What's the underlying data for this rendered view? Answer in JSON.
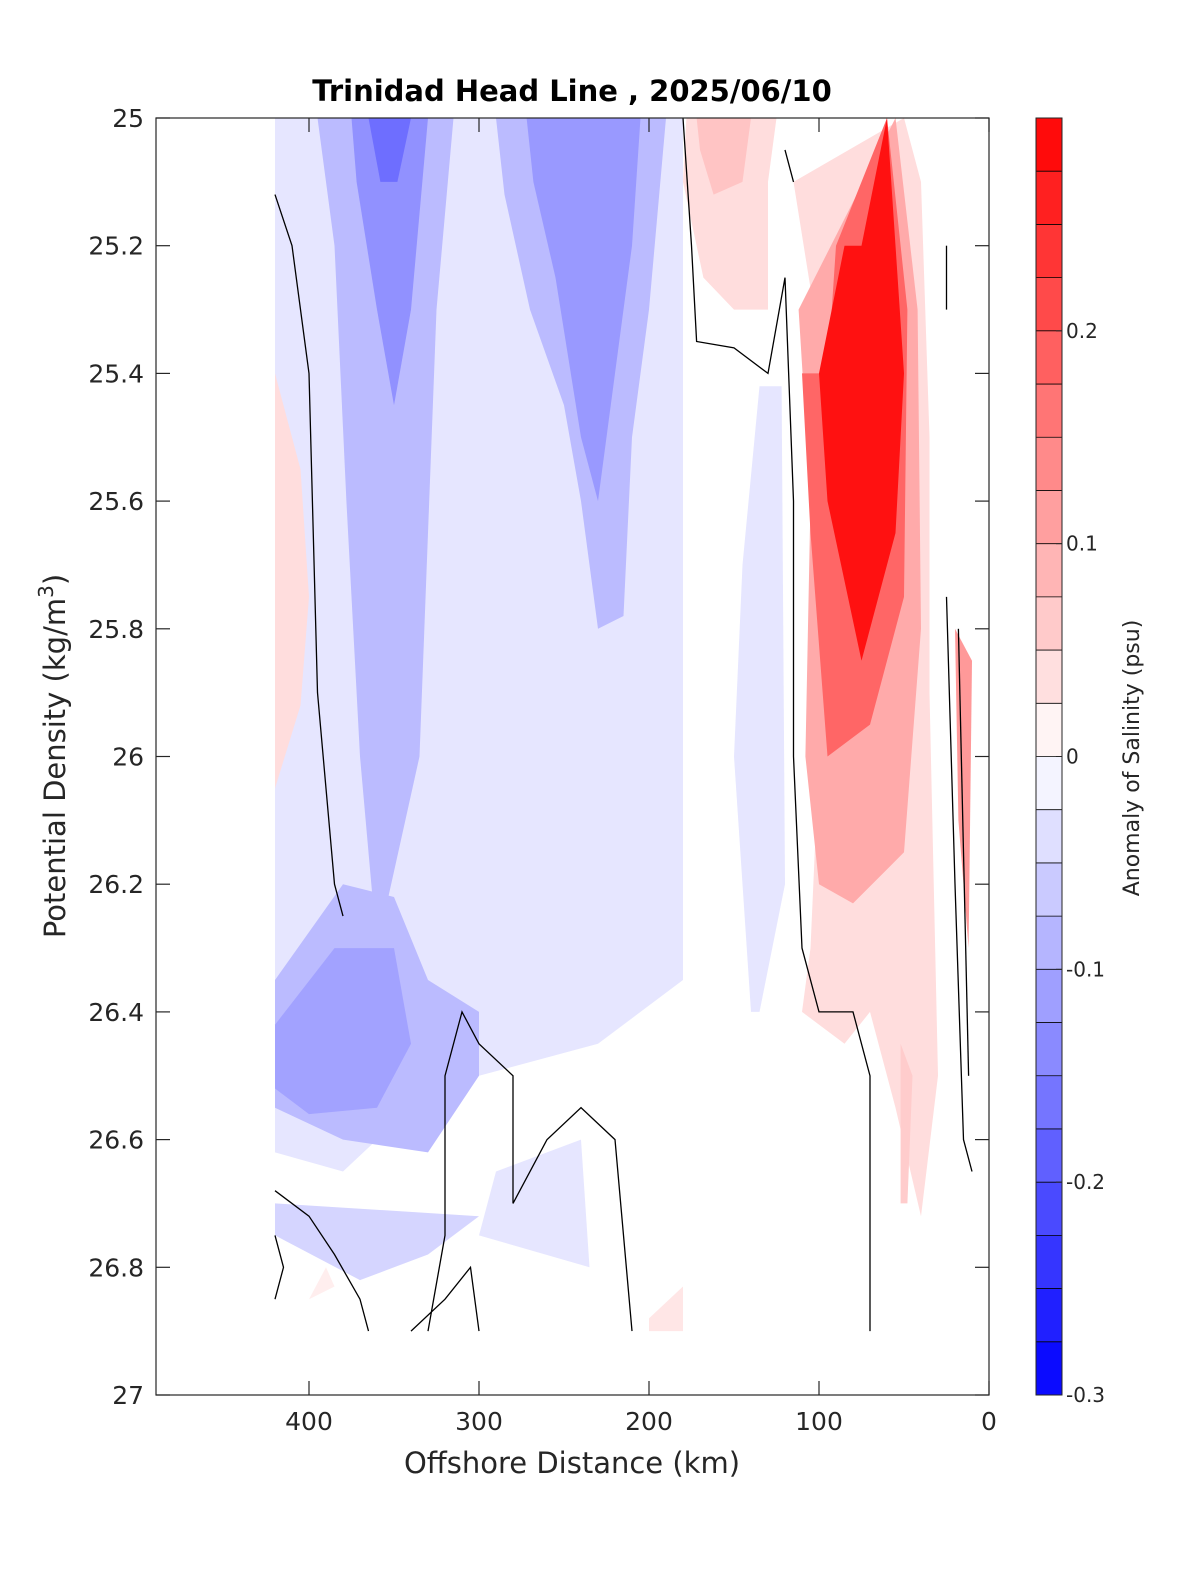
{
  "chart_data": {
    "type": "heatmap",
    "title": "Trinidad Head Line , 2025/06/10",
    "xlabel": "Offshore Distance (km)",
    "ylabel": "Potential Density (kg/m",
    "ylabel_sup": "3",
    "ylabel_close": ")",
    "xlim": [
      490,
      0
    ],
    "ylim": [
      25,
      27
    ],
    "x_reversed": true,
    "y_reversed": true,
    "x_ticks": [
      400,
      300,
      200,
      100,
      0
    ],
    "y_ticks": [
      25,
      25.2,
      25.4,
      25.6,
      25.8,
      26,
      26.2,
      26.4,
      26.6,
      26.8,
      27
    ],
    "y_tick_labels": [
      "25",
      "25.2",
      "25.4",
      "25.6",
      "25.8",
      "26",
      "26.2",
      "26.4",
      "26.6",
      "26.8",
      "27"
    ],
    "colorbar": {
      "label": "Anomaly of Salinity (psu)",
      "range": [
        -0.3,
        0.3
      ],
      "ticks": [
        0.2,
        0.1,
        0,
        -0.1,
        -0.2,
        -0.3
      ],
      "tick_labels": [
        "0.2",
        "0.1",
        "0",
        "-0.1",
        "-0.2",
        "-0.3"
      ],
      "levels": 24,
      "negative_color": "#0000ff",
      "positive_color": "#ff0000",
      "zero_color": "#ffffff"
    },
    "regions": [
      {
        "name": "outer-blue",
        "value": -0.03,
        "points": [
          [
            420,
            25
          ],
          [
            180,
            25
          ],
          [
            180,
            26.35
          ],
          [
            230,
            26.45
          ],
          [
            300,
            26.5
          ],
          [
            340,
            26.55
          ],
          [
            380,
            26.65
          ],
          [
            420,
            26.62
          ]
        ]
      },
      {
        "name": "near-blue",
        "value": -0.03,
        "points": [
          [
            135,
            25.42
          ],
          [
            122,
            25.42
          ],
          [
            120,
            26.2
          ],
          [
            135,
            26.4
          ],
          [
            140,
            26.4
          ],
          [
            150,
            26.0
          ],
          [
            145,
            25.7
          ]
        ]
      },
      {
        "name": "deep-blue-left",
        "value": -0.05,
        "points": [
          [
            300,
            26.72
          ],
          [
            420,
            26.7
          ],
          [
            420,
            26.75
          ],
          [
            370,
            26.82
          ],
          [
            330,
            26.78
          ]
        ]
      },
      {
        "name": "deep-blue-mid",
        "value": -0.03,
        "points": [
          [
            235,
            26.8
          ],
          [
            300,
            26.75
          ],
          [
            290,
            26.65
          ],
          [
            240,
            26.6
          ]
        ]
      },
      {
        "name": "band-left",
        "value": -0.08,
        "points": [
          [
            395,
            25
          ],
          [
            315,
            25
          ],
          [
            325,
            25.3
          ],
          [
            335,
            26.0
          ],
          [
            360,
            26.3
          ],
          [
            370,
            26.0
          ],
          [
            378,
            25.6
          ],
          [
            385,
            25.2
          ]
        ]
      },
      {
        "name": "band-left-core",
        "value": -0.13,
        "points": [
          [
            375,
            25
          ],
          [
            330,
            25
          ],
          [
            340,
            25.3
          ],
          [
            350,
            25.45
          ],
          [
            360,
            25.3
          ],
          [
            372,
            25.1
          ]
        ]
      },
      {
        "name": "band-left-peak",
        "value": -0.17,
        "points": [
          [
            365,
            25
          ],
          [
            340,
            25
          ],
          [
            348,
            25.1
          ],
          [
            358,
            25.1
          ]
        ]
      },
      {
        "name": "band-mid",
        "value": -0.08,
        "points": [
          [
            290,
            25
          ],
          [
            190,
            25
          ],
          [
            200,
            25.3
          ],
          [
            210,
            25.5
          ],
          [
            215,
            25.78
          ],
          [
            230,
            25.8
          ],
          [
            240,
            25.6
          ],
          [
            250,
            25.45
          ],
          [
            270,
            25.3
          ],
          [
            285,
            25.12
          ]
        ]
      },
      {
        "name": "band-mid-core",
        "value": -0.12,
        "points": [
          [
            272,
            25
          ],
          [
            205,
            25
          ],
          [
            210,
            25.2
          ],
          [
            220,
            25.4
          ],
          [
            230,
            25.6
          ],
          [
            240,
            25.5
          ],
          [
            255,
            25.25
          ],
          [
            268,
            25.1
          ]
        ]
      },
      {
        "name": "blob-lower-left",
        "value": -0.08,
        "points": [
          [
            420,
            26.35
          ],
          [
            380,
            26.2
          ],
          [
            350,
            26.22
          ],
          [
            330,
            26.35
          ],
          [
            300,
            26.4
          ],
          [
            300,
            26.5
          ],
          [
            330,
            26.62
          ],
          [
            380,
            26.6
          ],
          [
            420,
            26.55
          ]
        ]
      },
      {
        "name": "blob-lower-left-core",
        "value": -0.11,
        "points": [
          [
            420,
            26.42
          ],
          [
            385,
            26.3
          ],
          [
            350,
            26.3
          ],
          [
            340,
            26.45
          ],
          [
            360,
            26.55
          ],
          [
            400,
            26.56
          ],
          [
            420,
            26.52
          ]
        ]
      },
      {
        "name": "red-left",
        "value": 0.04,
        "points": [
          [
            420,
            25.4
          ],
          [
            405,
            25.55
          ],
          [
            400,
            25.75
          ],
          [
            405,
            25.92
          ],
          [
            420,
            26.05
          ]
        ]
      },
      {
        "name": "red-upper",
        "value": 0.04,
        "points": [
          [
            178,
            25
          ],
          [
            125,
            25
          ],
          [
            130,
            25.1
          ],
          [
            130,
            25.3
          ],
          [
            150,
            25.3
          ],
          [
            168,
            25.25
          ],
          [
            180,
            25.1
          ]
        ]
      },
      {
        "name": "red-upper-core",
        "value": 0.07,
        "points": [
          [
            172,
            25
          ],
          [
            140,
            25
          ],
          [
            145,
            25.1
          ],
          [
            162,
            25.12
          ],
          [
            170,
            25.05
          ]
        ]
      },
      {
        "name": "red-main",
        "value": 0.04,
        "points": [
          [
            115,
            25.1
          ],
          [
            100,
            25.35
          ],
          [
            100,
            26.0
          ],
          [
            105,
            26.3
          ],
          [
            110,
            26.4
          ],
          [
            85,
            26.45
          ],
          [
            70,
            26.4
          ],
          [
            55,
            26.55
          ],
          [
            40,
            26.72
          ],
          [
            30,
            26.5
          ],
          [
            35,
            25.9
          ],
          [
            35,
            25.5
          ],
          [
            40,
            25.1
          ],
          [
            50,
            25
          ]
        ]
      },
      {
        "name": "red-main-mid",
        "value": 0.1,
        "points": [
          [
            112,
            25.3
          ],
          [
            105,
            25.6
          ],
          [
            108,
            26.0
          ],
          [
            100,
            26.2
          ],
          [
            80,
            26.23
          ],
          [
            50,
            26.15
          ],
          [
            40,
            25.8
          ],
          [
            42,
            25.3
          ],
          [
            55,
            25
          ]
        ]
      },
      {
        "name": "red-main-core",
        "value": 0.18,
        "points": [
          [
            110,
            25.4
          ],
          [
            105,
            25.65
          ],
          [
            95,
            26.0
          ],
          [
            70,
            25.95
          ],
          [
            50,
            25.75
          ],
          [
            48,
            25.3
          ],
          [
            60,
            25.0
          ],
          [
            90,
            25.2
          ],
          [
            95,
            25.4
          ]
        ]
      },
      {
        "name": "red-main-peak",
        "value": 0.28,
        "points": [
          [
            100,
            25.4
          ],
          [
            95,
            25.6
          ],
          [
            75,
            25.85
          ],
          [
            55,
            25.65
          ],
          [
            50,
            25.4
          ],
          [
            60,
            25.0
          ],
          [
            75,
            25.2
          ],
          [
            85,
            25.2
          ]
        ]
      },
      {
        "name": "red-edge",
        "value": 0.12,
        "points": [
          [
            20,
            25.8
          ],
          [
            10,
            25.85
          ],
          [
            12,
            26.3
          ],
          [
            18,
            26.1
          ]
        ]
      },
      {
        "name": "red-bottom",
        "value": 0.03,
        "points": [
          [
            180,
            26.83
          ],
          [
            200,
            26.88
          ],
          [
            200,
            26.9
          ],
          [
            180,
            26.9
          ]
        ]
      },
      {
        "name": "red-bottom-left",
        "value": 0.02,
        "points": [
          [
            390,
            26.8
          ],
          [
            400,
            26.85
          ],
          [
            385,
            26.83
          ]
        ]
      },
      {
        "name": "red-stripe",
        "value": 0.06,
        "points": [
          [
            52,
            26.45
          ],
          [
            45,
            26.5
          ],
          [
            48,
            26.7
          ],
          [
            52,
            26.7
          ]
        ]
      }
    ],
    "contours": [
      {
        "value": 0,
        "points": [
          [
            420,
            25.12
          ],
          [
            410,
            25.2
          ],
          [
            400,
            25.4
          ],
          [
            395,
            25.9
          ],
          [
            390,
            26.05
          ],
          [
            385,
            26.2
          ],
          [
            380,
            26.25
          ]
        ]
      },
      {
        "value": 0,
        "points": [
          [
            420,
            26.68
          ],
          [
            400,
            26.72
          ],
          [
            385,
            26.78
          ],
          [
            370,
            26.85
          ],
          [
            365,
            26.9
          ]
        ]
      },
      {
        "value": 0,
        "points": [
          [
            420,
            26.75
          ],
          [
            415,
            26.8
          ],
          [
            420,
            26.85
          ]
        ]
      },
      {
        "value": 0,
        "points": [
          [
            340,
            26.9
          ],
          [
            320,
            26.85
          ],
          [
            305,
            26.8
          ],
          [
            300,
            26.9
          ]
        ]
      },
      {
        "value": 0,
        "points": [
          [
            180,
            25
          ],
          [
            175,
            25.2
          ],
          [
            172,
            25.35
          ],
          [
            150,
            25.36
          ],
          [
            130,
            25.4
          ],
          [
            120,
            25.25
          ],
          [
            115,
            25.6
          ],
          [
            115,
            26.0
          ],
          [
            110,
            26.3
          ],
          [
            100,
            26.4
          ],
          [
            80,
            26.4
          ],
          [
            70,
            26.5
          ],
          [
            70,
            26.9
          ]
        ]
      },
      {
        "value": 0,
        "points": [
          [
            210,
            26.9
          ],
          [
            220,
            26.6
          ],
          [
            240,
            26.55
          ],
          [
            260,
            26.6
          ],
          [
            280,
            26.7
          ],
          [
            280,
            26.5
          ],
          [
            300,
            26.45
          ],
          [
            310,
            26.4
          ],
          [
            320,
            26.5
          ],
          [
            320,
            26.75
          ],
          [
            330,
            26.9
          ]
        ]
      },
      {
        "value": 0,
        "points": [
          [
            25,
            25.2
          ],
          [
            25,
            25.3
          ]
        ]
      },
      {
        "value": 0,
        "points": [
          [
            25,
            25.75
          ],
          [
            20,
            26.2
          ],
          [
            15,
            26.6
          ],
          [
            10,
            26.65
          ]
        ]
      },
      {
        "value": 0,
        "points": [
          [
            18,
            25.8
          ],
          [
            15,
            26.15
          ],
          [
            12,
            26.5
          ]
        ]
      },
      {
        "value": 0,
        "points": [
          [
            120,
            25.05
          ],
          [
            115,
            25.1
          ]
        ]
      }
    ]
  }
}
